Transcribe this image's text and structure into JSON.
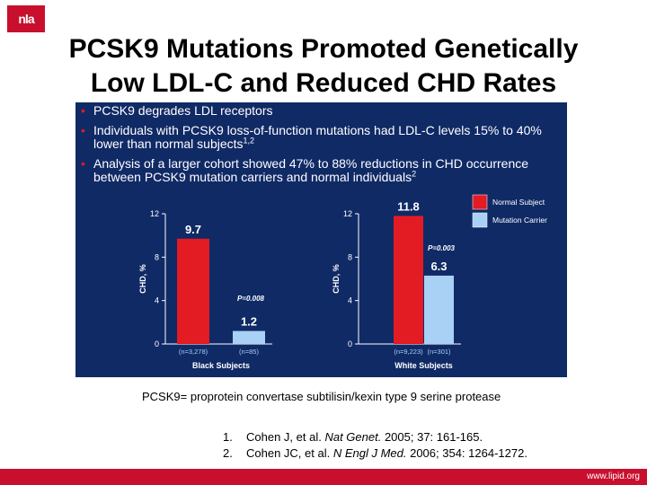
{
  "logo_text": "nla",
  "title_line1": "PCSK9 Mutations Promoted Genetically",
  "title_line2": "Low LDL-C and Reduced CHD Rates",
  "bullets": {
    "b1": "PCSK9 degrades LDL receptors",
    "b2_text": "Individuals with PCSK9 loss-of-function mutations had LDL-C levels 15% to 40% lower than normal subjects",
    "b2_sup": "1,2",
    "b3_text": "Analysis of a larger cohort showed 47% to 88% reductions in CHD occurrence between PCSK9 mutation carriers and normal individuals",
    "b3_sup": "2"
  },
  "chart_data": {
    "type": "bar",
    "colors": {
      "normal": "#e31b23",
      "carrier": "#a9d0f5"
    },
    "legend": [
      "Normal Subject",
      "Mutation Carrier"
    ],
    "legend_position": "top-right",
    "panels": [
      {
        "xlabel": "Black Subjects",
        "ylabel": "CHD, %",
        "ylim": [
          0,
          12
        ],
        "yticks": [
          "0",
          "4",
          "8",
          "12"
        ],
        "values": [
          9.7,
          1.2
        ],
        "value_labels": [
          "9.7",
          "1.2"
        ],
        "n_labels": [
          "(n=3,278)",
          "(n=85)"
        ],
        "p_value": "P=0.008"
      },
      {
        "xlabel": "White Subjects",
        "ylabel": "CHD, %",
        "ylim": [
          0,
          12
        ],
        "yticks": [
          "0",
          "4",
          "8",
          "12"
        ],
        "values": [
          11.8,
          6.3
        ],
        "value_labels": [
          "11.8",
          "6.3"
        ],
        "n_labels": [
          "(n=9,223)",
          "(n=301)"
        ],
        "p_value": "P=0.003"
      }
    ]
  },
  "definition": "PCSK9= proprotein convertase subtilisin/kexin type 9 serine protease",
  "references": {
    "r1_num": "1.",
    "r1_pre": "Cohen J, et al. ",
    "r1_journal": "Nat Genet.",
    "r1_post": " 2005; 37: 161-165.",
    "r2_num": "2.",
    "r2_pre": "Cohen JC, et al. ",
    "r2_journal": "N Engl J Med.",
    "r2_post": " 2006; 354: 1264-1272."
  },
  "footer_url": "www.lipid.org"
}
